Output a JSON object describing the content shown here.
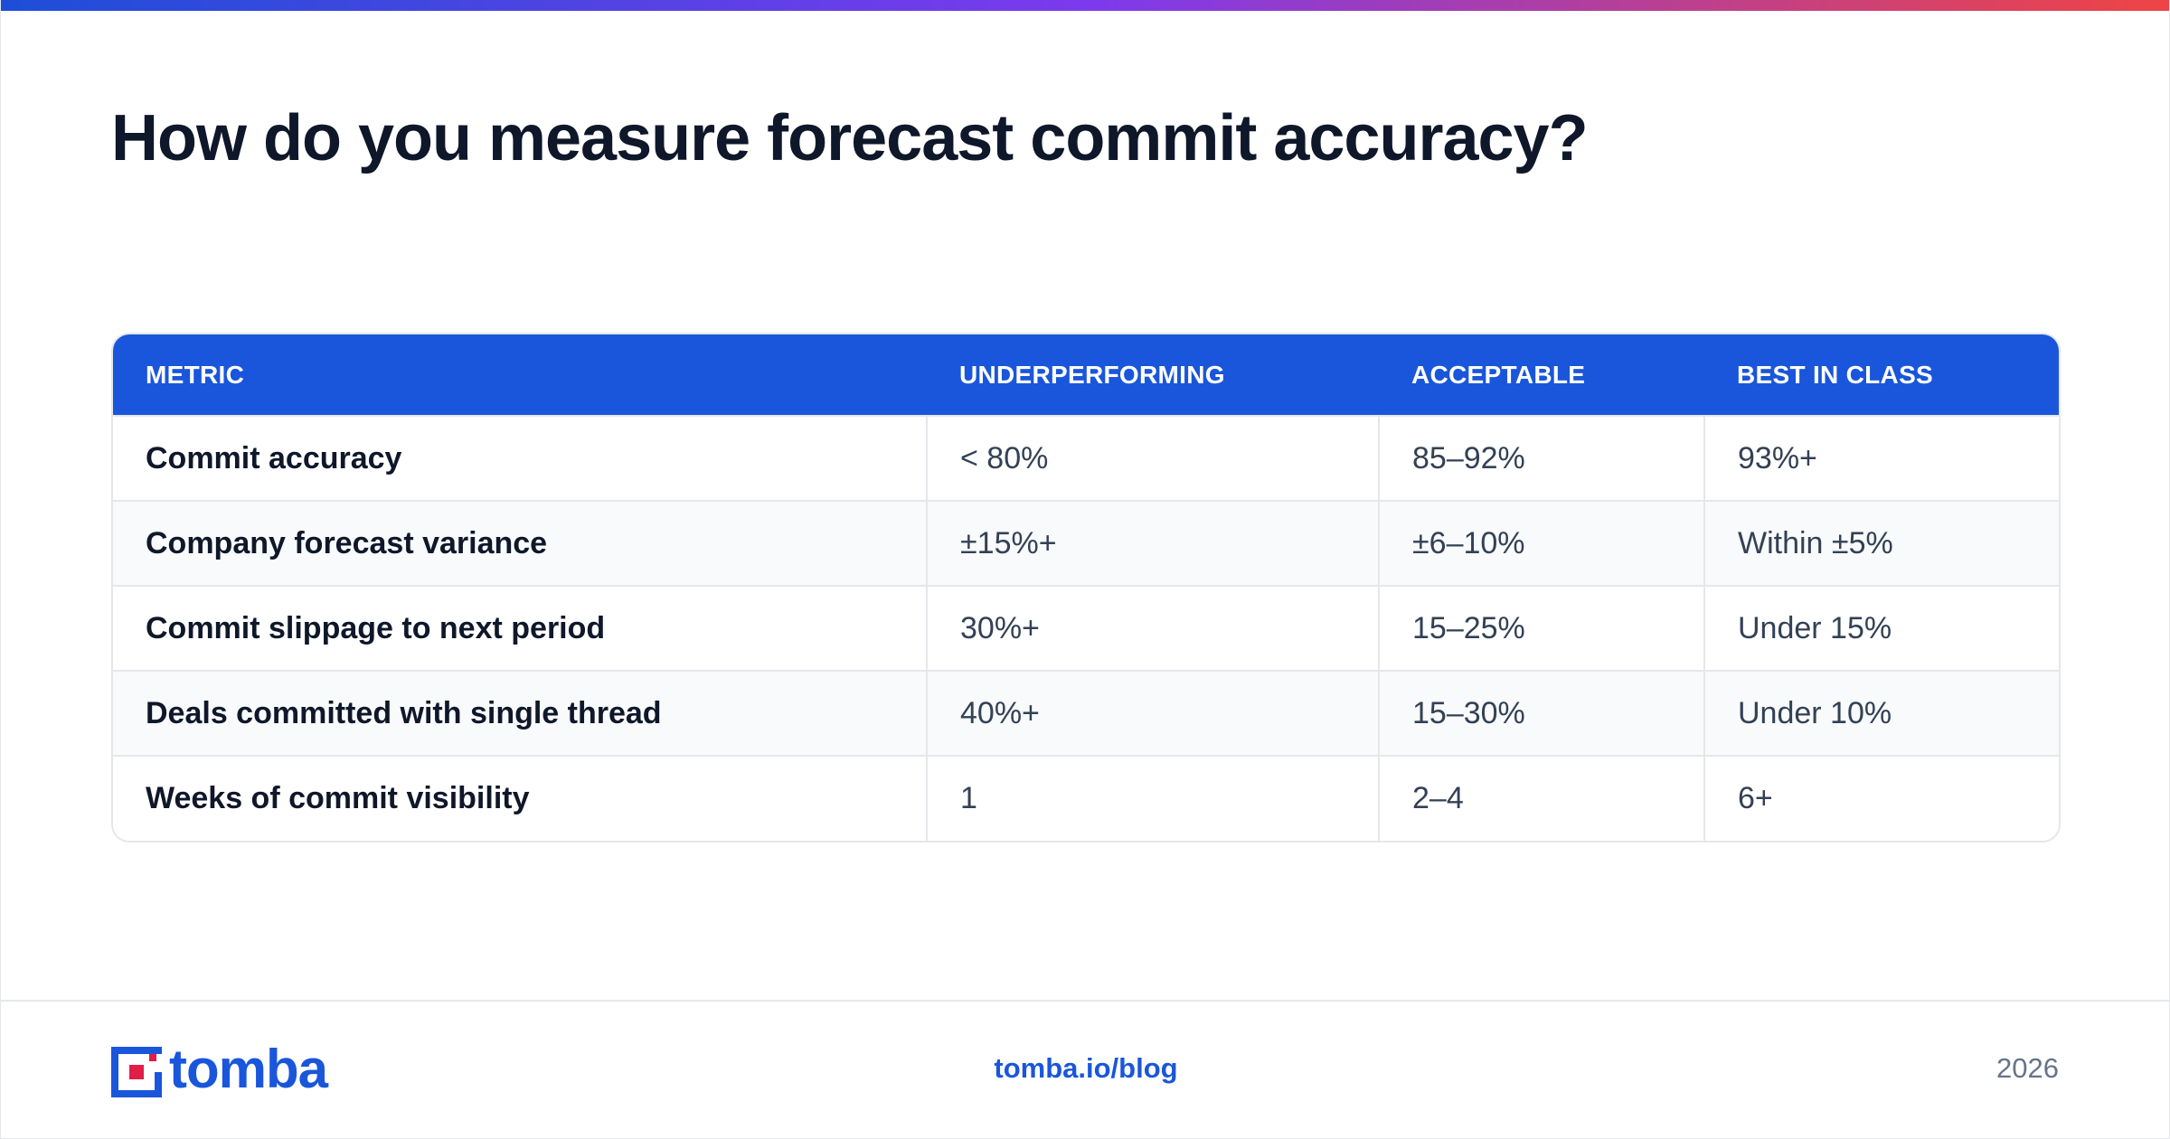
{
  "slide": {
    "title": "How do you measure forecast commit accuracy?",
    "accent_gradient": [
      "#1d4ed8",
      "#7c3aed",
      "#ef4444"
    ],
    "header_color": "#1a56db",
    "brand_color": "#1a56db"
  },
  "table": {
    "headers": [
      "METRIC",
      "UNDERPERFORMING",
      "ACCEPTABLE",
      "BEST IN CLASS"
    ],
    "rows": [
      [
        "Commit accuracy",
        "< 80%",
        "85–92%",
        "93%+"
      ],
      [
        "Company forecast variance",
        "±15%+",
        "±6–10%",
        "Within ±5%"
      ],
      [
        "Commit slippage to next period",
        "30%+",
        "15–25%",
        "Under 15%"
      ],
      [
        "Deals committed with single thread",
        "40%+",
        "15–30%",
        "Under 10%"
      ],
      [
        "Weeks of commit visibility",
        "1",
        "2–4",
        "6+"
      ]
    ]
  },
  "footer": {
    "brand": "tomba",
    "logo_icon": "tomba-logo-icon",
    "link": "tomba.io/blog",
    "year": "2026"
  }
}
